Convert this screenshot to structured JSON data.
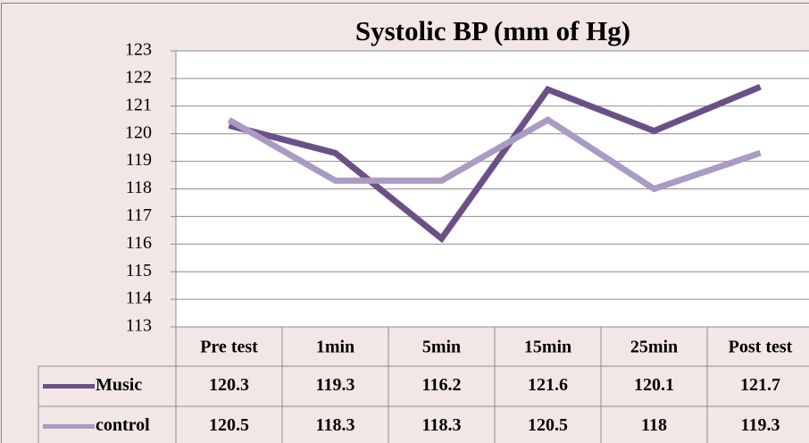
{
  "chart_data": {
    "type": "line",
    "title": "Systolic BP (mm of Hg)",
    "categories": [
      "Pre test",
      "1min",
      "5min",
      "15min",
      "25min",
      "Post test"
    ],
    "series": [
      {
        "name": "Music",
        "color": "#6b5088",
        "values": [
          120.3,
          119.3,
          116.2,
          121.6,
          120.1,
          121.7
        ]
      },
      {
        "name": "control",
        "color": "#a99bc3",
        "values": [
          120.5,
          118.3,
          118.3,
          120.5,
          118,
          119.3
        ]
      }
    ],
    "ylim": [
      113,
      123
    ],
    "yticks": [
      113,
      114,
      115,
      116,
      117,
      118,
      119,
      120,
      121,
      122,
      123
    ],
    "grid": true
  }
}
